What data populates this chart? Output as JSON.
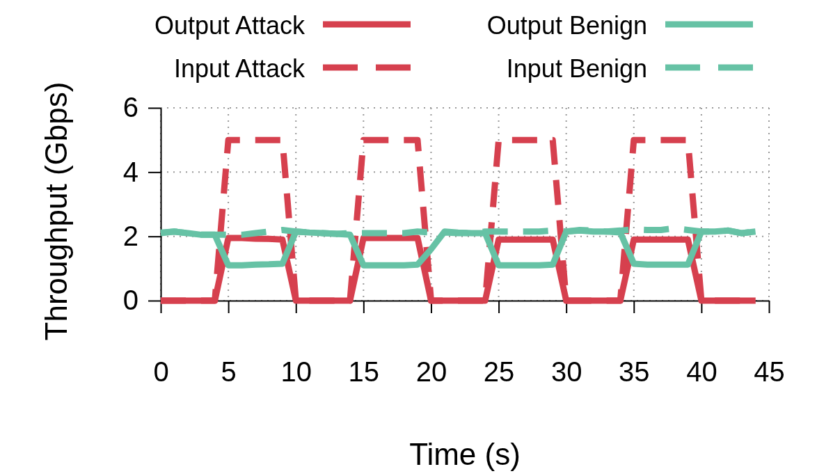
{
  "chart_data": {
    "type": "line",
    "xlabel": "Time (s)",
    "ylabel": "Throughput (Gbps)",
    "x": [
      0,
      1,
      2,
      3,
      4,
      5,
      6,
      7,
      8,
      9,
      10,
      11,
      12,
      13,
      14,
      15,
      16,
      17,
      18,
      19,
      20,
      21,
      22,
      23,
      24,
      25,
      26,
      27,
      28,
      29,
      30,
      31,
      32,
      33,
      34,
      35,
      36,
      37,
      38,
      39,
      40,
      41,
      42,
      43,
      44
    ],
    "series": [
      {
        "name": "Output Attack",
        "color": "#d6404e",
        "line_style": "solid",
        "values": [
          0,
          0,
          0,
          0,
          0,
          1.95,
          1.95,
          1.93,
          1.92,
          1.9,
          0,
          0,
          0,
          0,
          0,
          1.95,
          1.95,
          1.95,
          1.95,
          1.95,
          0,
          0,
          0,
          0,
          0,
          1.9,
          1.9,
          1.9,
          1.9,
          1.9,
          0,
          0,
          0,
          0,
          0,
          1.9,
          1.9,
          1.9,
          1.9,
          1.9,
          0,
          0,
          0,
          0,
          0
        ]
      },
      {
        "name": "Input Attack",
        "color": "#d6404e",
        "line_style": "dashed",
        "values": [
          0,
          0,
          0,
          0,
          0,
          5,
          5,
          5,
          5,
          5,
          0,
          0,
          0,
          0,
          0,
          5,
          5,
          5,
          5,
          5,
          0,
          0,
          0,
          0,
          0,
          5,
          5,
          5,
          5,
          5,
          0,
          0,
          0,
          0,
          0,
          5,
          5,
          5,
          5,
          5,
          0,
          0,
          0,
          0,
          0
        ]
      },
      {
        "name": "Output Benign",
        "color": "#66c2a5",
        "line_style": "solid",
        "values": [
          2.1,
          2.15,
          2.1,
          2.05,
          2.05,
          1.1,
          1.1,
          1.12,
          1.13,
          1.15,
          2.15,
          2.12,
          2.1,
          2.08,
          2.05,
          1.1,
          1.1,
          1.1,
          1.1,
          1.12,
          1.6,
          2.15,
          2.12,
          2.1,
          2.1,
          1.1,
          1.1,
          1.1,
          1.1,
          1.12,
          2.15,
          2.18,
          2.15,
          2.15,
          2.12,
          1.15,
          1.12,
          1.12,
          1.12,
          1.12,
          2.15,
          2.15,
          2.18,
          2.1,
          2.15
        ]
      },
      {
        "name": "Input Benign",
        "color": "#66c2a5",
        "line_style": "dashed",
        "values": [
          2.12,
          2.15,
          2.1,
          2.05,
          2.05,
          2.05,
          2.05,
          2.1,
          2.15,
          2.2,
          2.15,
          2.12,
          2.1,
          2.08,
          2.1,
          2.1,
          2.1,
          2.1,
          2.1,
          2.15,
          2.12,
          2.12,
          2.1,
          2.1,
          2.15,
          2.15,
          2.15,
          2.15,
          2.15,
          2.18,
          2.15,
          2.2,
          2.18,
          2.15,
          2.18,
          2.22,
          2.2,
          2.2,
          2.25,
          2.2,
          2.15,
          2.15,
          2.18,
          2.1,
          2.15
        ]
      }
    ],
    "xlim": [
      0,
      45
    ],
    "xticks": [
      0,
      5,
      10,
      15,
      20,
      25,
      30,
      35,
      40,
      45
    ],
    "ylim": [
      0,
      6
    ],
    "yticks": [
      0,
      2,
      4,
      6
    ],
    "grid": true,
    "legend": "top",
    "marker": "none"
  }
}
